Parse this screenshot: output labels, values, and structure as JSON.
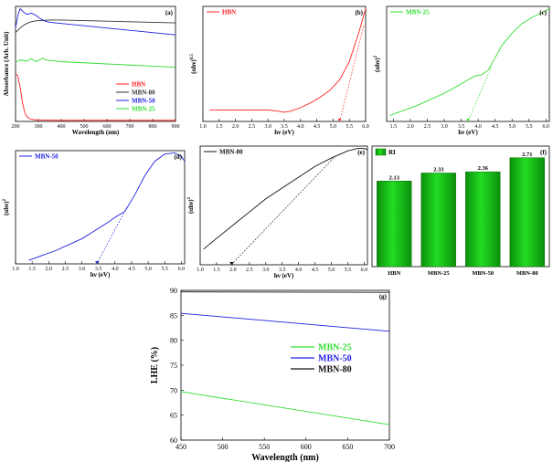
{
  "chart_data": [
    {
      "id": "a",
      "panel_label": "(a)",
      "type": "line",
      "xlabel": "Wavelength (nm)",
      "ylabel": "Absorbance (Arb. Unit)",
      "xlim": [
        200,
        900
      ],
      "xticks": [
        200,
        300,
        400,
        500,
        600,
        700,
        800,
        900
      ],
      "legend_position": "center-right",
      "series": [
        {
          "name": "HBN",
          "color": "#ff2020",
          "x": [
            200,
            210,
            220,
            230,
            240,
            250,
            260,
            280,
            300,
            400,
            500,
            600,
            700,
            800,
            900
          ],
          "y": [
            0.42,
            0.4,
            0.3,
            0.17,
            0.08,
            0.04,
            0.025,
            0.015,
            0.012,
            0.01,
            0.01,
            0.01,
            0.01,
            0.01,
            0.01
          ]
        },
        {
          "name": "MBN-80",
          "color": "#333333",
          "x": [
            200,
            220,
            240,
            260,
            280,
            300,
            350,
            400,
            500,
            600,
            700,
            800,
            900
          ],
          "y": [
            0.78,
            0.82,
            0.85,
            0.87,
            0.88,
            0.885,
            0.89,
            0.89,
            0.885,
            0.88,
            0.875,
            0.87,
            0.865
          ]
        },
        {
          "name": "MBN-50",
          "color": "#2020e0",
          "x": [
            200,
            210,
            220,
            235,
            250,
            270,
            290,
            310,
            330,
            350,
            400,
            500,
            600,
            700,
            800,
            900
          ],
          "y": [
            0.82,
            0.93,
            0.99,
            0.96,
            0.94,
            0.95,
            0.93,
            0.9,
            0.88,
            0.87,
            0.86,
            0.84,
            0.82,
            0.8,
            0.78,
            0.76
          ]
        },
        {
          "name": "MBN-25",
          "color": "#33dd33",
          "x": [
            200,
            220,
            250,
            270,
            290,
            310,
            320,
            330,
            350,
            400,
            500,
            600,
            700,
            800,
            900
          ],
          "y": [
            0.52,
            0.54,
            0.53,
            0.55,
            0.525,
            0.545,
            0.555,
            0.54,
            0.535,
            0.525,
            0.515,
            0.505,
            0.495,
            0.485,
            0.475
          ]
        }
      ]
    },
    {
      "id": "b",
      "panel_label": "(b)",
      "type": "line",
      "xlabel": "hν (eV)",
      "ylabel": "(αhν)",
      "ylabel_sup": "0.5",
      "xlim": [
        1.0,
        6.0
      ],
      "xticks": [
        1.0,
        1.5,
        2.0,
        2.5,
        3.0,
        3.5,
        4.0,
        4.5,
        5.0,
        5.5,
        6.0
      ],
      "legend_position": "top-left",
      "series": [
        {
          "name": "HBN",
          "color": "#ff2020",
          "x": [
            1.2,
            1.5,
            2.0,
            2.5,
            3.0,
            3.3,
            3.5,
            3.7,
            4.0,
            4.3,
            4.6,
            4.9,
            5.2,
            5.5,
            5.8,
            6.0
          ],
          "y": [
            0.1,
            0.1,
            0.1,
            0.1,
            0.1,
            0.09,
            0.08,
            0.09,
            0.12,
            0.16,
            0.21,
            0.27,
            0.36,
            0.52,
            0.78,
            0.98
          ]
        }
      ],
      "tangent": {
        "color": "#ff2020",
        "x": [
          5.2,
          5.95
        ],
        "y": [
          0.0,
          0.84
        ]
      }
    },
    {
      "id": "c",
      "panel_label": "(c)",
      "type": "line",
      "xlabel": "hν (eV)",
      "ylabel": "(αhν)",
      "ylabel_sup": "2",
      "xlim": [
        1.3,
        6.1
      ],
      "xticks": [
        1.5,
        2.0,
        2.5,
        3.0,
        3.5,
        4.0,
        4.5,
        5.0,
        5.5,
        6.0
      ],
      "legend_position": "top-left",
      "series": [
        {
          "name": "MBN-25",
          "color": "#33dd33",
          "x": [
            1.4,
            1.8,
            2.2,
            2.6,
            3.0,
            3.4,
            3.7,
            3.9,
            4.1,
            4.3,
            4.5,
            4.7,
            5.0,
            5.3,
            5.6,
            5.9,
            6.1
          ],
          "y": [
            0.05,
            0.09,
            0.13,
            0.18,
            0.23,
            0.29,
            0.34,
            0.37,
            0.38,
            0.42,
            0.52,
            0.62,
            0.72,
            0.8,
            0.85,
            0.89,
            0.92
          ]
        }
      ],
      "tangent": {
        "color": "#33dd33",
        "x": [
          3.7,
          4.4
        ],
        "y": [
          0.0,
          0.45
        ]
      }
    },
    {
      "id": "d",
      "panel_label": "(d)",
      "type": "line",
      "xlabel": "hν (eV)",
      "ylabel": "(αhν)",
      "ylabel_sup": "2",
      "xlim": [
        1.0,
        6.1
      ],
      "xticks": [
        1.0,
        1.5,
        2.0,
        2.5,
        3.0,
        3.5,
        4.0,
        4.5,
        5.0,
        5.5,
        6.0
      ],
      "legend_position": "top-left",
      "series": [
        {
          "name": "MBN-50",
          "color": "#2020e0",
          "x": [
            1.4,
            1.8,
            2.2,
            2.6,
            3.0,
            3.4,
            3.8,
            4.0,
            4.3,
            4.6,
            4.9,
            5.2,
            5.5,
            5.8,
            6.0,
            6.1
          ],
          "y": [
            0.03,
            0.07,
            0.11,
            0.16,
            0.21,
            0.28,
            0.35,
            0.39,
            0.44,
            0.58,
            0.74,
            0.86,
            0.92,
            0.93,
            0.9,
            0.86
          ]
        }
      ],
      "tangent": {
        "color": "#2020e0",
        "x": [
          3.45,
          4.35
        ],
        "y": [
          0.0,
          0.47
        ]
      }
    },
    {
      "id": "e",
      "panel_label": "(e)",
      "type": "line",
      "xlabel": "hν (eV)",
      "ylabel": "(αhν)",
      "ylabel_sup": "2",
      "xlim": [
        1.0,
        6.1
      ],
      "xticks": [
        1.0,
        1.5,
        2.0,
        2.5,
        3.0,
        3.5,
        4.0,
        4.5,
        5.0,
        5.5,
        6.0
      ],
      "legend_position": "top-left",
      "series": [
        {
          "name": "MBN-80",
          "color": "#111111",
          "x": [
            1.1,
            1.5,
            2.0,
            2.5,
            3.0,
            3.5,
            4.0,
            4.5,
            5.0,
            5.5,
            5.8,
            6.0,
            6.1
          ],
          "y": [
            0.13,
            0.22,
            0.33,
            0.44,
            0.55,
            0.64,
            0.73,
            0.82,
            0.89,
            0.95,
            0.97,
            0.97,
            0.96
          ]
        }
      ],
      "tangent": {
        "color": "#111111",
        "x": [
          1.95,
          5.1
        ],
        "y": [
          0.0,
          0.9
        ]
      }
    },
    {
      "id": "f",
      "panel_label": "(f)",
      "type": "bar",
      "legend": "RI",
      "legend_position": "top-left",
      "categories": [
        "HBN",
        "MBN-25",
        "MBN-50",
        "MBN-80"
      ],
      "values": [
        2.13,
        2.33,
        2.36,
        2.71
      ],
      "value_labels": [
        "2.13",
        "2.33",
        "2.36",
        "2.71"
      ],
      "ylim": [
        0,
        3.0
      ],
      "color": "#22dd22"
    },
    {
      "id": "g",
      "panel_label": "(g)",
      "type": "line",
      "xlabel": "Wavelength (nm)",
      "ylabel": "LHE (%)",
      "xlim": [
        450,
        700
      ],
      "ylim": [
        60,
        90
      ],
      "xticks": [
        450,
        500,
        550,
        600,
        650,
        700
      ],
      "yticks": [
        60,
        65,
        70,
        75,
        80,
        85,
        90
      ],
      "legend_position": "center-right",
      "series": [
        {
          "name": "MBN-25",
          "color": "#33dd33",
          "x": [
            450,
            700
          ],
          "y": [
            69.7,
            63.1
          ]
        },
        {
          "name": "MBN-50",
          "color": "#2020e0",
          "x": [
            450,
            700
          ],
          "y": [
            85.4,
            81.8
          ]
        },
        {
          "name": "MBN-80",
          "color": "#111111",
          "x": [
            450,
            700
          ],
          "y": [
            89.7,
            89.6
          ]
        }
      ]
    }
  ]
}
